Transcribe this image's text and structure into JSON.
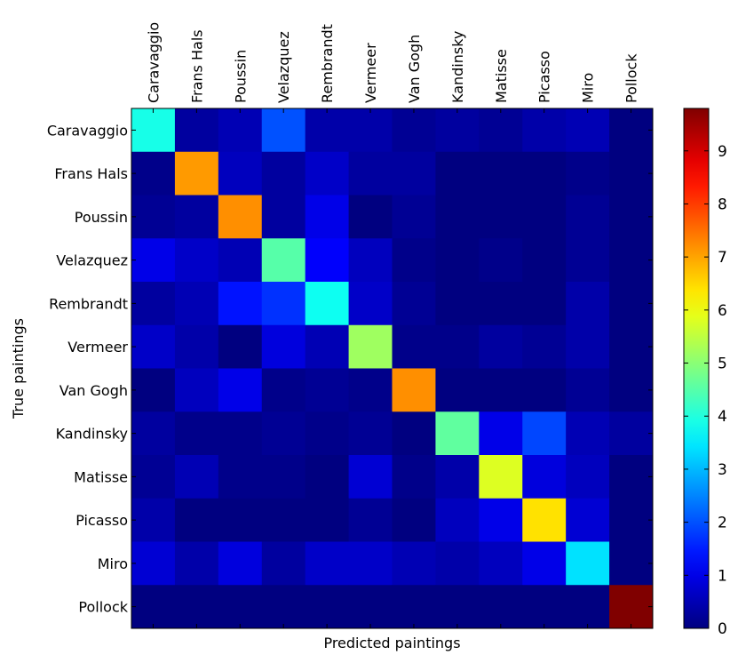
{
  "chart_data": {
    "type": "heatmap",
    "title": "",
    "xlabel": "Predicted paintings",
    "ylabel": "True paintings",
    "x_categories": [
      "Caravaggio",
      "Frans Hals",
      "Poussin",
      "Velazquez",
      "Rembrandt",
      "Vermeer",
      "Van Gogh",
      "Kandinsky",
      "Matisse",
      "Picasso",
      "Miro",
      "Pollock"
    ],
    "y_categories": [
      "Caravaggio",
      "Frans Hals",
      "Poussin",
      "Velazquez",
      "Rembrandt",
      "Vermeer",
      "Van Gogh",
      "Kandinsky",
      "Matisse",
      "Picasso",
      "Miro",
      "Pollock"
    ],
    "values": [
      [
        3.9,
        0.3,
        0.5,
        2.0,
        0.4,
        0.4,
        0.2,
        0.3,
        0.2,
        0.4,
        0.5,
        0.0
      ],
      [
        0.1,
        7.1,
        0.6,
        0.3,
        0.7,
        0.3,
        0.3,
        0.0,
        0.0,
        0.0,
        0.1,
        0.0
      ],
      [
        0.2,
        0.3,
        7.2,
        0.3,
        1.0,
        0.0,
        0.2,
        0.0,
        0.0,
        0.0,
        0.2,
        0.0
      ],
      [
        1.0,
        0.7,
        0.5,
        4.5,
        1.2,
        0.6,
        0.1,
        0.0,
        0.1,
        0.0,
        0.2,
        0.0
      ],
      [
        0.3,
        0.5,
        1.4,
        1.7,
        3.8,
        0.7,
        0.2,
        0.0,
        0.0,
        0.0,
        0.4,
        0.0
      ],
      [
        0.7,
        0.4,
        0.0,
        0.9,
        0.5,
        5.2,
        0.1,
        0.1,
        0.3,
        0.2,
        0.4,
        0.0
      ],
      [
        0.0,
        0.6,
        1.0,
        0.1,
        0.2,
        0.1,
        7.2,
        0.0,
        0.0,
        0.0,
        0.2,
        0.0
      ],
      [
        0.3,
        0.1,
        0.1,
        0.2,
        0.1,
        0.2,
        0.0,
        4.6,
        1.0,
        1.9,
        0.5,
        0.3
      ],
      [
        0.2,
        0.5,
        0.1,
        0.1,
        0.0,
        0.8,
        0.1,
        0.4,
        5.8,
        0.9,
        0.6,
        0.0
      ],
      [
        0.4,
        0.0,
        0.0,
        0.0,
        0.0,
        0.2,
        0.0,
        0.6,
        1.0,
        6.4,
        0.8,
        0.0
      ],
      [
        0.8,
        0.4,
        0.9,
        0.3,
        0.7,
        0.7,
        0.5,
        0.4,
        0.6,
        1.0,
        3.4,
        0.0
      ],
      [
        0.0,
        0.0,
        0.0,
        0.0,
        0.0,
        0.0,
        0.0,
        0.0,
        0.0,
        0.0,
        0.0,
        9.8
      ]
    ],
    "colorbar": {
      "range": [
        0,
        9.8
      ],
      "ticks": [
        0,
        1,
        2,
        3,
        4,
        5,
        6,
        7,
        8,
        9
      ],
      "colormap": "jet"
    },
    "grid": false
  }
}
